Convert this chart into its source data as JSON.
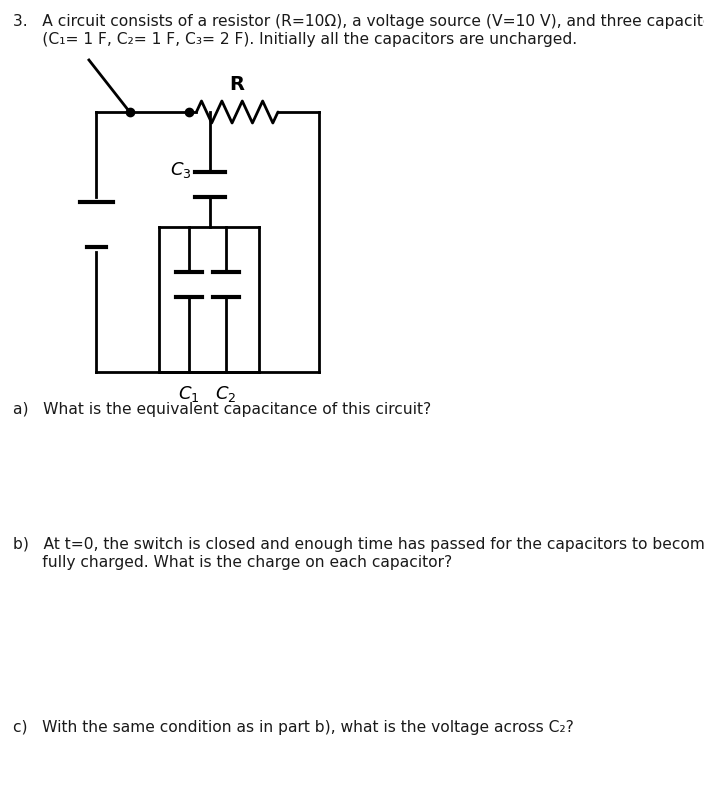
{
  "bg_color": "#ffffff",
  "text_color": "#1a1a1a",
  "line_color": "#000000",
  "line_width": 2.0,
  "title_line1": "3.   A circuit consists of a resistor (R=10Ω), a voltage source (V=10 V), and three capacitors",
  "title_line2": "      (C₁= 1 F, C₂= 1 F, C₃= 2 F). Initially all the capacitors are uncharged.",
  "question_a": "a)   What is the equivalent capacitance of this circuit?",
  "question_b_line1": "b)   At t=0, the switch is closed and enough time has passed for the capacitors to become",
  "question_b_line2": "      fully charged. What is the charge on each capacitor?",
  "question_c": "c)   With the same condition as in part b), what is the voltage across C₂?",
  "font_size_text": 11.2,
  "font_size_label": 12.5
}
